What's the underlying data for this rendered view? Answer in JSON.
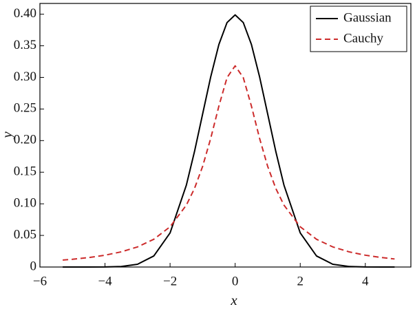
{
  "chart_data": {
    "type": "line",
    "x_label": "x",
    "y_label": "y",
    "x": [
      -5.3,
      -5,
      -4.5,
      -4,
      -3.5,
      -3,
      -2.5,
      -2,
      -1.5,
      -1.25,
      -1,
      -0.75,
      -0.5,
      -0.25,
      0,
      0.25,
      0.5,
      0.75,
      1,
      1.25,
      1.5,
      2,
      2.5,
      3,
      3.5,
      4,
      4.5,
      4.9
    ],
    "series": [
      {
        "name": "Gaussian",
        "color": "#000000",
        "dash": "solid",
        "values": [
          0,
          0,
          2e-05,
          0.00013,
          0.00087,
          0.0044,
          0.0175,
          0.054,
          0.1295,
          0.1826,
          0.242,
          0.3011,
          0.3521,
          0.3867,
          0.3989,
          0.3867,
          0.3521,
          0.3011,
          0.242,
          0.1826,
          0.1295,
          0.054,
          0.0175,
          0.0044,
          0.00087,
          0.00013,
          2e-05,
          0
        ]
      },
      {
        "name": "Cauchy",
        "color": "#cc2a2a",
        "dash": "dashed",
        "values": [
          0.011,
          0.01224,
          0.01497,
          0.01872,
          0.02404,
          0.03183,
          0.0439,
          0.06366,
          0.09794,
          0.1242,
          0.15915,
          0.2037,
          0.25465,
          0.29959,
          0.31831,
          0.29959,
          0.25465,
          0.2037,
          0.15915,
          0.1242,
          0.09794,
          0.06366,
          0.0439,
          0.03183,
          0.02404,
          0.01872,
          0.01497,
          0.01273
        ]
      }
    ],
    "xlim": [
      -6,
      5.4
    ],
    "ylim": [
      0,
      0.417
    ],
    "xticks": [
      {
        "value": -6,
        "label": "−6"
      },
      {
        "value": -4,
        "label": "−4"
      },
      {
        "value": -2,
        "label": "−2"
      },
      0,
      2,
      4
    ],
    "yticks": [
      0,
      0.05,
      {
        "value": 0.1,
        "label": "0.10"
      },
      0.15,
      {
        "value": 0.2,
        "label": "0.20"
      },
      0.25,
      {
        "value": 0.3,
        "label": "0.30"
      },
      0.35,
      {
        "value": 0.4,
        "label": "0.40"
      }
    ],
    "legend": "upper right"
  }
}
